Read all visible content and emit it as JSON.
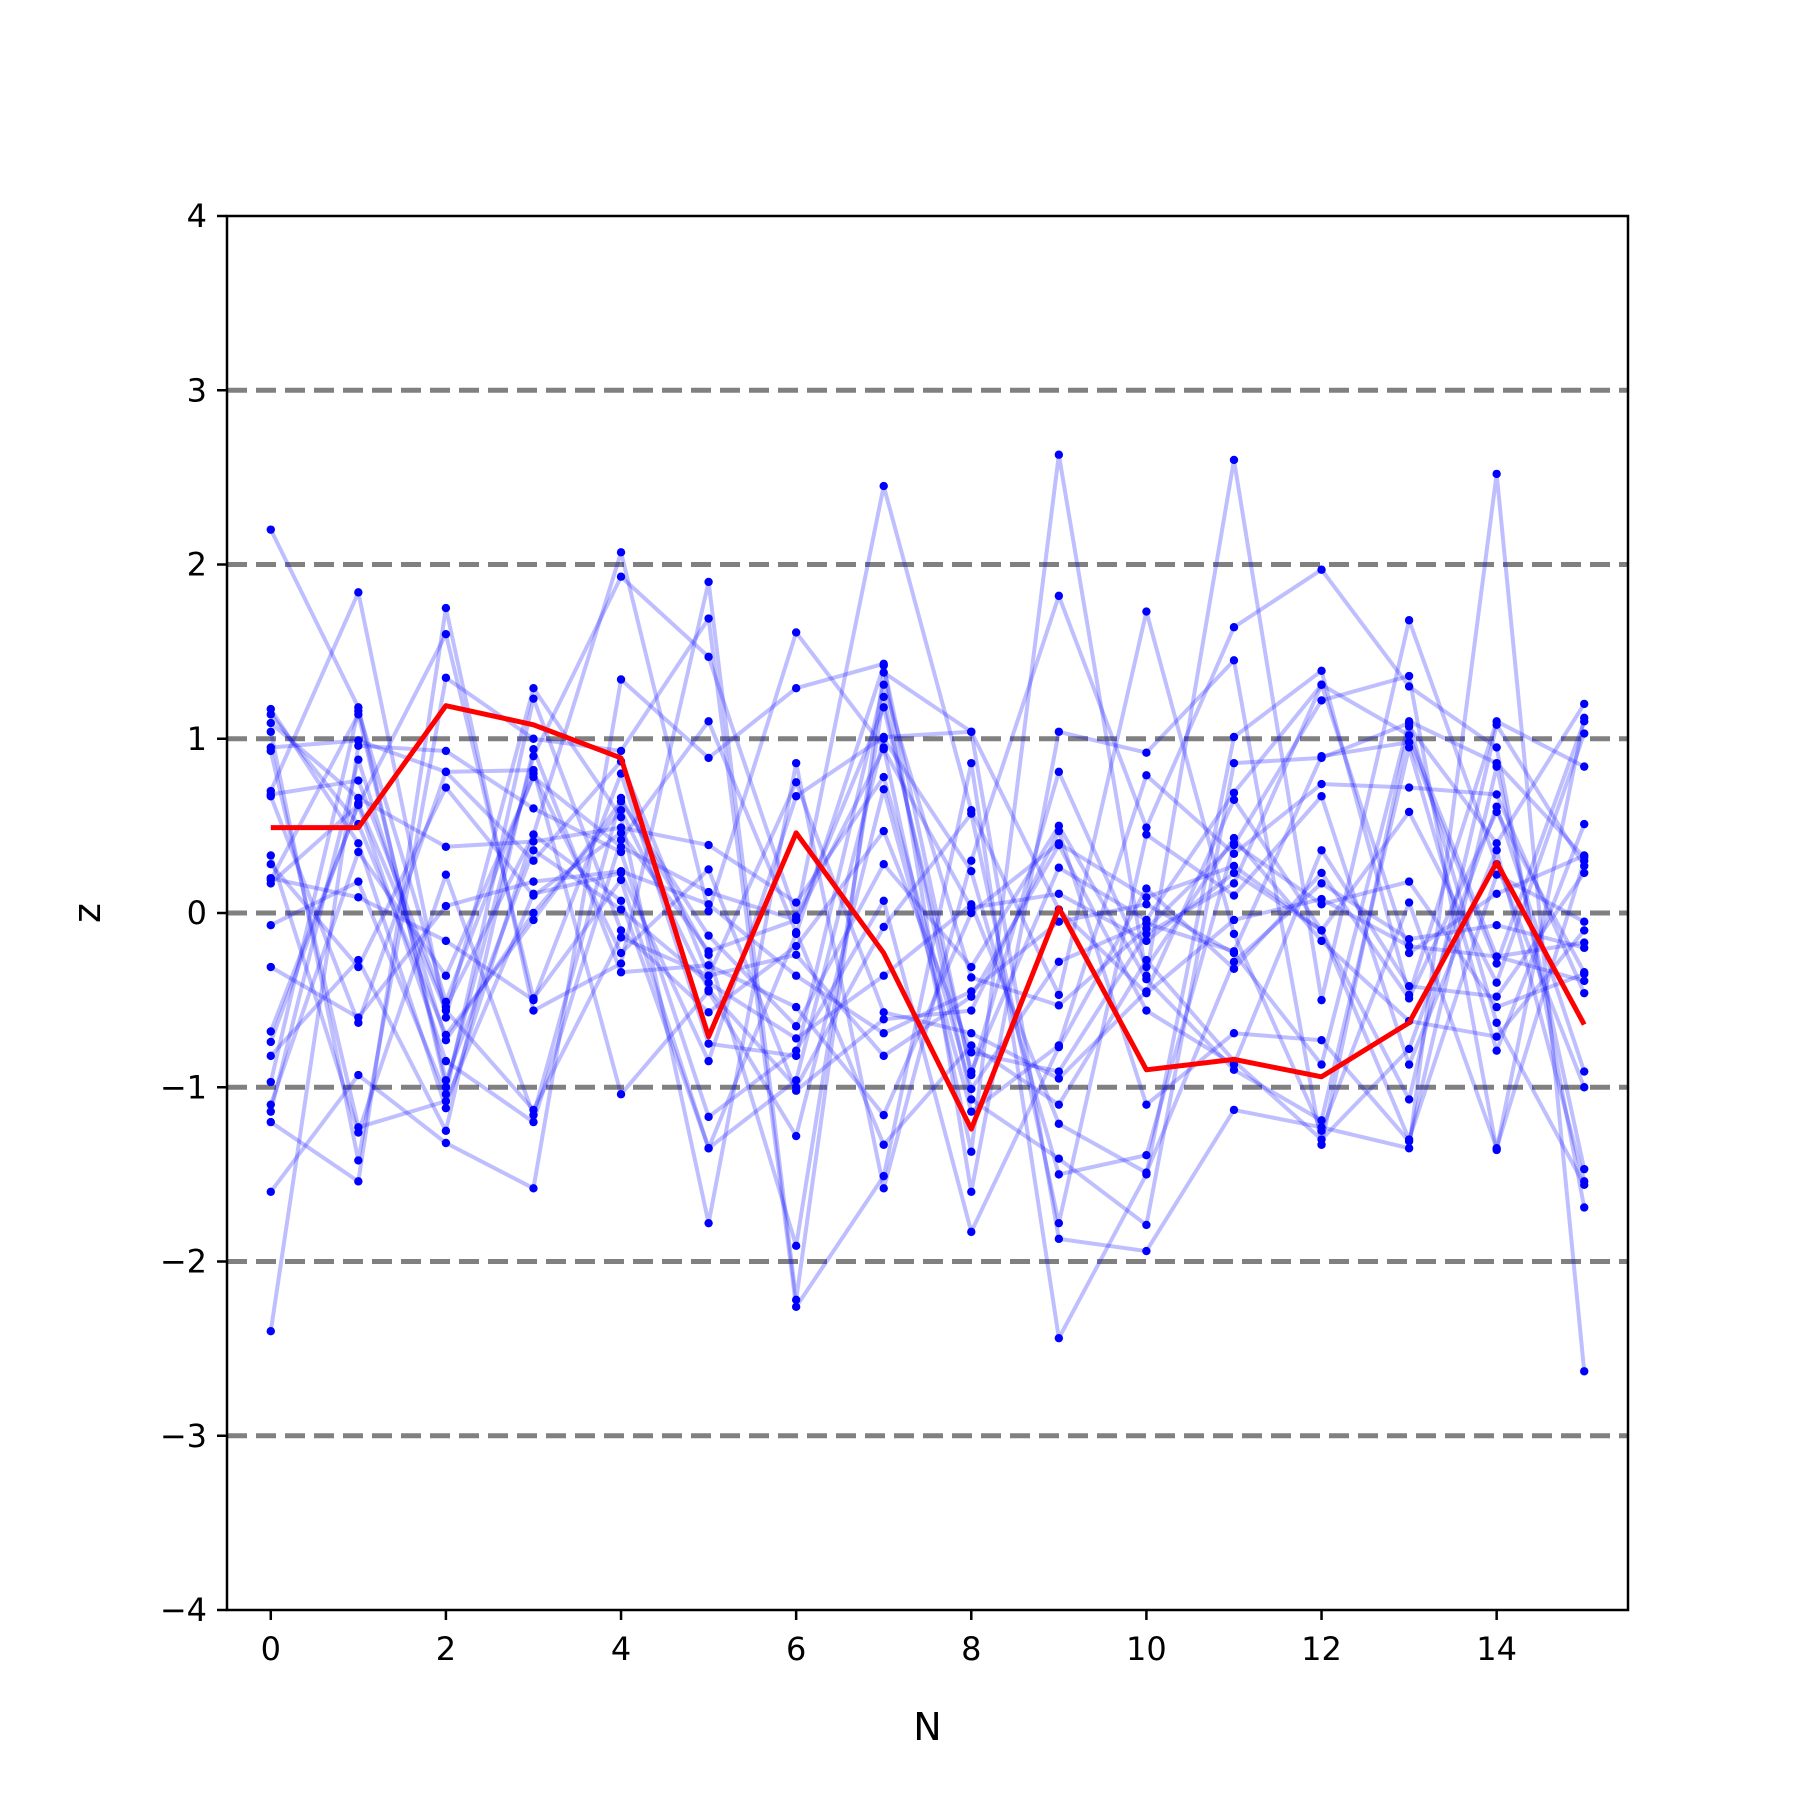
{
  "chart_data": {
    "type": "line",
    "title": "",
    "xlabel": "N",
    "ylabel": "z",
    "xlim": [
      -0.5,
      15.5
    ],
    "ylim": [
      -4,
      4
    ],
    "x": [
      0,
      1,
      2,
      3,
      4,
      5,
      6,
      7,
      8,
      9,
      10,
      11,
      12,
      13,
      14,
      15
    ],
    "xticks": [
      0,
      2,
      4,
      6,
      8,
      10,
      12,
      14
    ],
    "xtick_labels": [
      "0",
      "2",
      "4",
      "6",
      "8",
      "10",
      "12",
      "14"
    ],
    "yticks": [
      -4,
      -3,
      -2,
      -1,
      0,
      1,
      2,
      3,
      4
    ],
    "ytick_labels": [
      "−4",
      "−3",
      "−2",
      "−1",
      "0",
      "1",
      "2",
      "3",
      "4"
    ],
    "reference_lines": [
      -3,
      -2,
      -1,
      0,
      1,
      2,
      3
    ],
    "grid": false,
    "legend": "none",
    "colors": {
      "samples": "#0000ff",
      "highlight": "#ff0000",
      "reference": "#808080",
      "axes": "#000000"
    },
    "series": [
      {
        "values": [
          2.2,
          1.18,
          -1.0,
          0.9,
          1.93,
          1.47,
          -0.02,
          2.45,
          0.59,
          -0.47,
          1.73,
          -0.12,
          -1.25,
          0.06,
          -1.35,
          0.3
        ]
      },
      {
        "values": [
          -2.4,
          0.96,
          0.93,
          0.6,
          0.35,
          -1.17,
          -0.79,
          0.07,
          -1.83,
          -0.77,
          0.14,
          -0.32,
          0.23,
          -0.49,
          0.58,
          -0.34
        ]
      },
      {
        "values": [
          1.17,
          0.4,
          -1.12,
          0.45,
          2.07,
          0.01,
          1.61,
          0.95,
          -1.37,
          2.63,
          -0.36,
          2.6,
          -0.5,
          1.68,
          0.28,
          -1.0
        ]
      },
      {
        "values": [
          -1.2,
          -1.54,
          1.75,
          -0.56,
          -0.29,
          1.9,
          -2.22,
          1.38,
          1.04,
          -1.87,
          -1.94,
          -1.13,
          -1.23,
          -1.35,
          2.52,
          -2.63
        ]
      },
      {
        "values": [
          0.7,
          1.84,
          -0.6,
          1.29,
          0.55,
          -1.78,
          0.86,
          -1.58,
          0.3,
          1.82,
          0.49,
          1.64,
          1.97,
          1.3,
          0.95,
          -1.69
        ]
      },
      {
        "values": [
          -1.6,
          -0.93,
          -1.32,
          -1.58,
          1.34,
          0.89,
          1.29,
          1.43,
          -1.6,
          1.04,
          0.92,
          1.45,
          -1.33,
          1.07,
          0.4,
          1.2
        ]
      },
      {
        "values": [
          1.04,
          -1.42,
          1.35,
          1.0,
          0.93,
          1.69,
          -2.26,
          -1.51,
          0.86,
          -2.44,
          -1.5,
          1.01,
          1.39,
          -0.47,
          1.1,
          0.84
        ]
      },
      {
        "values": [
          0.33,
          -1.26,
          0.22,
          -1.16,
          0.66,
          -0.24,
          -1.91,
          1.24,
          -1.07,
          -1.41,
          -1.79,
          0.86,
          0.89,
          1.09,
          -0.63,
          -1.56
        ]
      },
      {
        "values": [
          0.95,
          0.99,
          0.81,
          0.82,
          -1.04,
          -0.45,
          -1.28,
          0.71,
          -1.14,
          -0.76,
          0.79,
          0.34,
          0.74,
          0.72,
          0.68,
          -0.46
        ]
      },
      {
        "values": [
          -0.68,
          0.62,
          1.6,
          -0.49,
          0.19,
          -1.35,
          -0.96,
          1.0,
          0.24,
          -1.5,
          -1.39,
          0.39,
          1.22,
          1.36,
          -1.36,
          1.12
        ]
      },
      {
        "values": [
          -0.97,
          1.16,
          -0.51,
          0.8,
          -0.23,
          0.25,
          -1.02,
          -0.61,
          -0.56,
          0.47,
          -1.1,
          -0.69,
          -0.73,
          -1.31,
          0.84,
          -1.47
        ]
      },
      {
        "values": [
          0.17,
          0.62,
          -0.85,
          -1.2,
          0.42,
          1.1,
          -0.11,
          -1.33,
          -0.76,
          -1.1,
          -0.27,
          -0.85,
          -1.3,
          -0.78,
          0.61,
          -0.91
        ]
      },
      {
        "values": [
          -0.82,
          -0.27,
          -1.25,
          0.94,
          -0.34,
          -0.3,
          -0.54,
          -1.16,
          0.0,
          0.4,
          0.09,
          0.27,
          -0.1,
          -1.07,
          1.08,
          0.27
        ]
      },
      {
        "values": [
          1.14,
          0.51,
          -0.7,
          -0.04,
          0.64,
          -0.13,
          -0.65,
          0.28,
          -0.31,
          0.5,
          -0.38,
          -0.9,
          -1.19,
          0.95,
          -0.79,
          0.51
        ]
      },
      {
        "values": [
          0.19,
          1.14,
          -0.96,
          0.36,
          0.02,
          -0.4,
          -0.72,
          -0.36,
          0.05,
          -1.21,
          -1.49,
          -0.28,
          0.17,
          -0.15,
          -0.07,
          -0.2
        ]
      },
      {
        "values": [
          -0.07,
          0.18,
          -1.04,
          1.23,
          -0.1,
          -0.57,
          -0.19,
          0.47,
          -0.8,
          -0.91,
          -0.12,
          0.17,
          1.31,
          1.02,
          -0.25,
          -0.39
        ]
      },
      {
        "values": [
          0.67,
          -0.63,
          0.81,
          0.3,
          0.87,
          -0.36,
          0.75,
          -0.57,
          -0.69,
          -0.95,
          -0.45,
          0.65,
          -0.1,
          -1.3,
          0.22,
          -0.05
        ]
      },
      {
        "values": [
          -1.14,
          0.88,
          -0.73,
          0.0,
          0.59,
          -0.44,
          -1.0,
          -0.08,
          0.57,
          -1.78,
          0.45,
          0.1,
          0.67,
          -0.87,
          0.36,
          -1.54
        ]
      },
      {
        "values": [
          0.2,
          0.09,
          -0.16,
          -0.5,
          0.8,
          -0.75,
          -0.82,
          1.31,
          -0.37,
          -0.53,
          -0.09,
          0.4,
          0.05,
          0.18,
          -0.54,
          -0.35
        ]
      },
      {
        "values": [
          -0.31,
          -0.6,
          0.04,
          0.18,
          0.24,
          0.05,
          -0.36,
          -0.69,
          -0.45,
          -0.05,
          0.05,
          -0.23,
          -0.87,
          1.1,
          0.86,
          0.32
        ]
      },
      {
        "values": [
          -1.1,
          0.35,
          -0.36,
          0.78,
          0.38,
          0.12,
          -0.04,
          0.94,
          0.03,
          0.11,
          -0.16,
          0.23,
          -0.1,
          0.58,
          -0.4,
          1.03
        ]
      },
      {
        "values": [
          0.93,
          -1.23,
          -1.08,
          0.11,
          0.23,
          -0.85,
          0.67,
          1.01,
          1.04,
          0.02,
          -0.46,
          -0.04,
          0.08,
          -0.19,
          -0.25,
          -0.17
        ]
      },
      {
        "values": [
          0.68,
          0.76,
          -0.54,
          0.45,
          0.07,
          -1.35,
          -0.12,
          1.42,
          -0.93,
          0.81,
          -0.31,
          0.43,
          -0.16,
          -0.62,
          -0.71,
          -0.1
        ]
      },
      {
        "values": [
          -0.74,
          0.63,
          -0.56,
          -1.13,
          -0.14,
          -0.36,
          -0.24,
          -0.82,
          -0.48,
          0.39,
          -0.56,
          -0.87,
          0.36,
          -0.42,
          -0.48,
          0.23
        ]
      },
      {
        "values": [
          0.28,
          -0.31,
          0.72,
          0.1,
          0.46,
          -0.22,
          -0.04,
          1.18,
          -0.91,
          0.26,
          -0.04,
          0.69,
          1.31,
          -0.23,
          0.11,
          0.33
        ]
      },
      {
        "values": [
          1.09,
          0.66,
          0.38,
          0.41,
          0.49,
          0.39,
          0.06,
          0.78,
          -1.01,
          -0.28,
          -0.06,
          -0.22,
          0.9,
          0.98,
          -0.29,
          1.1
        ]
      }
    ],
    "highlight_series": {
      "values": [
        0.49,
        0.49,
        1.19,
        1.08,
        0.89,
        -0.71,
        0.46,
        -0.23,
        -1.24,
        0.03,
        -0.9,
        -0.84,
        -0.94,
        -0.63,
        0.29,
        -0.64
      ]
    }
  }
}
